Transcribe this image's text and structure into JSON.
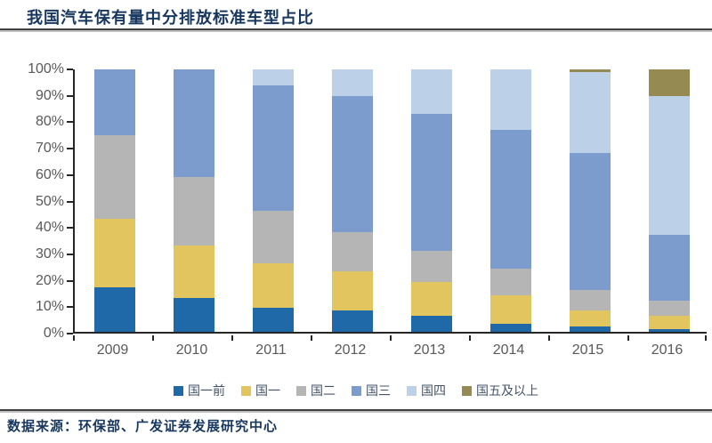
{
  "title": "我国汽车保有量中分排放标准车型占比",
  "source": "数据来源：环保部、广发证券发展研究中心",
  "colors": {
    "title_text": "#17375E",
    "axis_label": "#595959",
    "axis_line": "#262626",
    "divider": "#3F3F3F"
  },
  "chart_data": {
    "type": "bar",
    "stacked": true,
    "percent_stacked": true,
    "title": "我国汽车保有量中分排放标准车型占比",
    "xlabel": "",
    "ylabel": "",
    "ylim": [
      0,
      100
    ],
    "grid": false,
    "legend_position": "bottom",
    "y_tick_labels": [
      "0%",
      "10%",
      "20%",
      "30%",
      "40%",
      "50%",
      "60%",
      "70%",
      "80%",
      "90%",
      "100%"
    ],
    "categories": [
      "2009",
      "2010",
      "2011",
      "2012",
      "2013",
      "2014",
      "2015",
      "2016"
    ],
    "series": [
      {
        "name": "国一前",
        "color": "#2069A8",
        "values": [
          17,
          13,
          9,
          8,
          6,
          3,
          2,
          1
        ]
      },
      {
        "name": "国一",
        "color": "#E2C55E",
        "values": [
          26,
          20,
          17,
          15,
          13,
          11,
          6,
          5
        ]
      },
      {
        "name": "国二",
        "color": "#B5B5B5",
        "values": [
          32,
          26,
          20,
          15,
          12,
          10,
          8,
          6
        ]
      },
      {
        "name": "国三",
        "color": "#7D9CCE",
        "values": [
          25,
          41,
          48,
          52,
          52,
          53,
          52,
          25
        ]
      },
      {
        "name": "国四",
        "color": "#BCD0E8",
        "values": [
          0,
          0,
          6,
          10,
          17,
          23,
          31,
          53
        ]
      },
      {
        "name": "国五及以上",
        "color": "#948A52",
        "values": [
          0,
          0,
          0,
          0,
          0,
          0,
          1,
          10
        ]
      }
    ]
  }
}
